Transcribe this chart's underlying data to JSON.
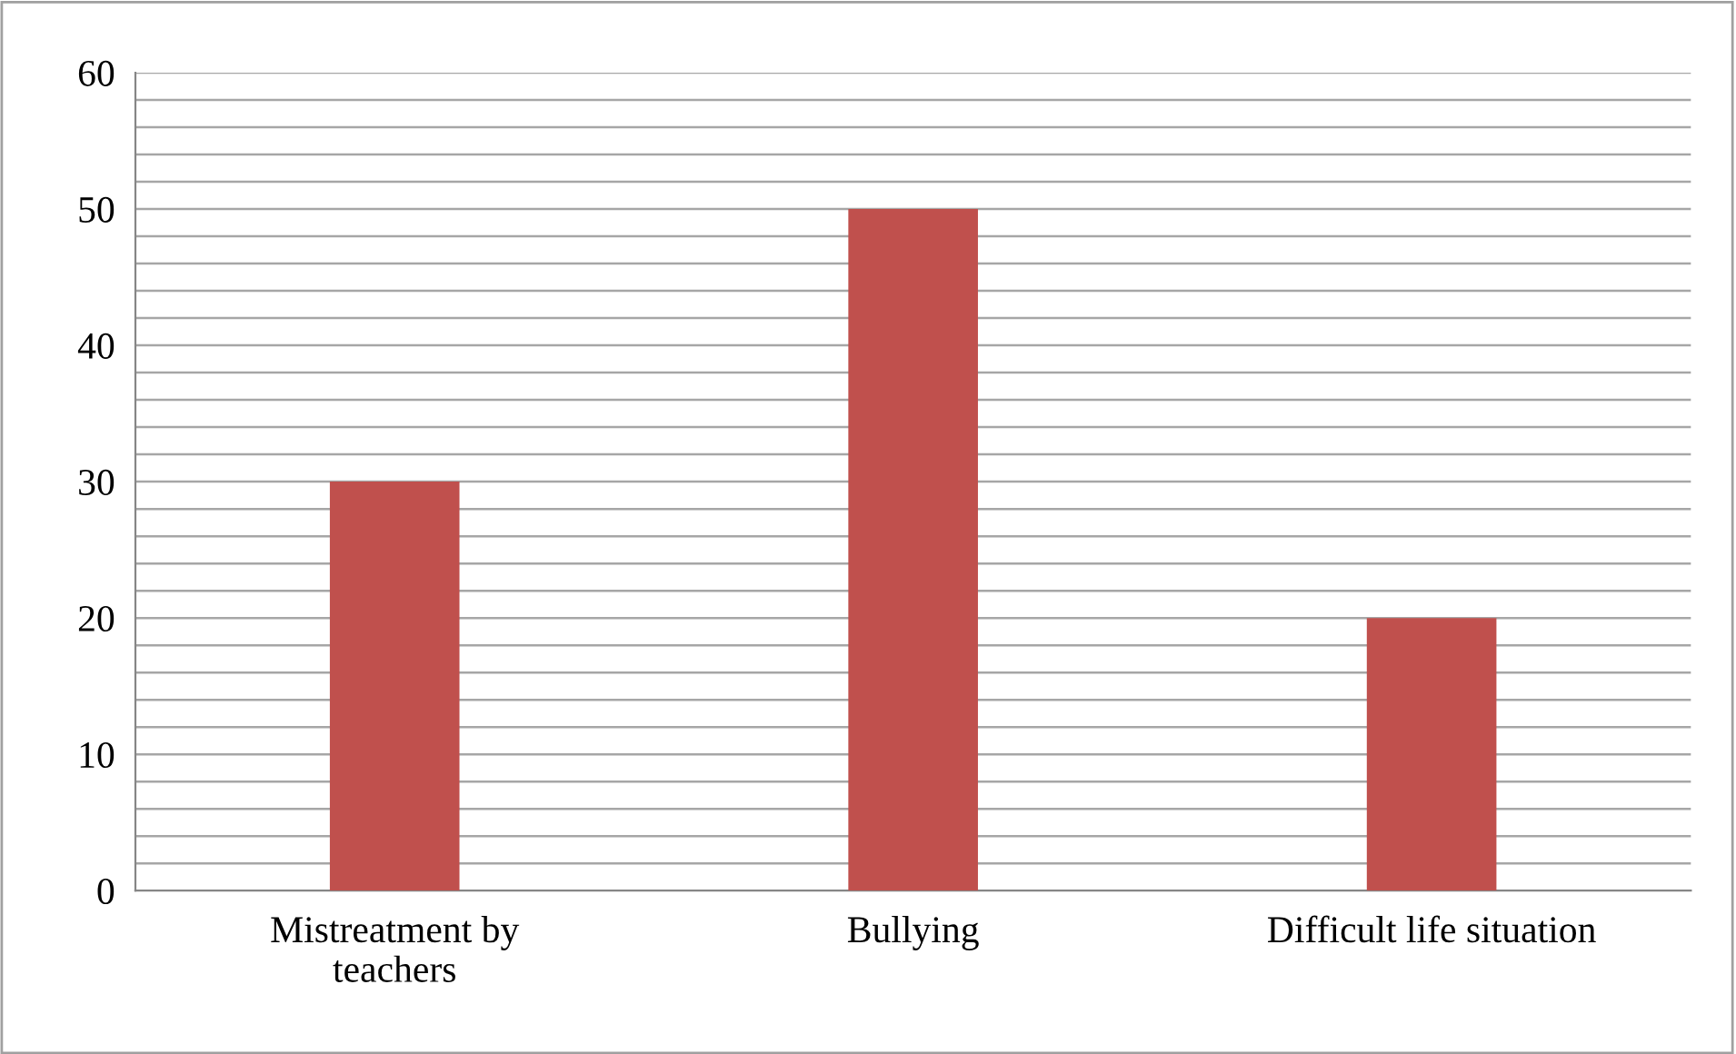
{
  "chart_data": {
    "type": "bar",
    "categories": [
      "Mistreatment by\nteachers",
      "Bullying",
      "Difficult life situation"
    ],
    "series": [
      {
        "color": "#c0504d",
        "values": [
          30,
          50,
          20
        ]
      }
    ],
    "ylim": [
      0,
      60
    ],
    "yticks": [
      0,
      {
        "value": 2,
        "label": null
      },
      {
        "value": 4,
        "label": null
      },
      {
        "value": 6,
        "label": null
      },
      {
        "value": 8,
        "label": null
      },
      10,
      {
        "value": 12,
        "label": null
      },
      {
        "value": 14,
        "label": null
      },
      {
        "value": 16,
        "label": null
      },
      {
        "value": 18,
        "label": null
      },
      20,
      {
        "value": 22,
        "label": null
      },
      {
        "value": 24,
        "label": null
      },
      {
        "value": 26,
        "label": null
      },
      {
        "value": 28,
        "label": null
      },
      30,
      {
        "value": 32,
        "label": null
      },
      {
        "value": 34,
        "label": null
      },
      {
        "value": 36,
        "label": null
      },
      {
        "value": 38,
        "label": null
      },
      40,
      {
        "value": 42,
        "label": null
      },
      {
        "value": 44,
        "label": null
      },
      {
        "value": 46,
        "label": null
      },
      {
        "value": 48,
        "label": null
      },
      50,
      {
        "value": 52,
        "label": null
      },
      {
        "value": 54,
        "label": null
      },
      {
        "value": 56,
        "label": null
      },
      {
        "value": 58,
        "label": null
      },
      60
    ],
    "grid": "y",
    "legend": false
  }
}
